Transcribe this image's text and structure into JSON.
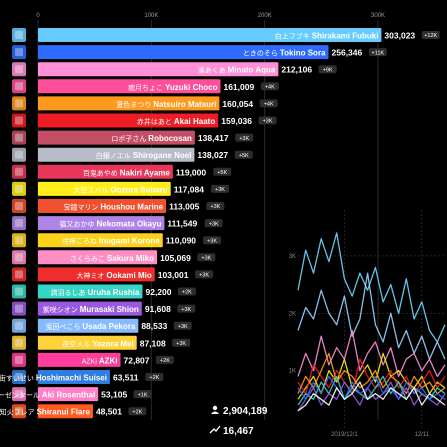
{
  "chart_data": {
    "type": "bar",
    "orientation": "horizontal",
    "x_ticks": [
      "0",
      "100K",
      "200K",
      "300K"
    ],
    "x_tick_values": [
      0,
      100000,
      200000,
      300000
    ],
    "xlim": [
      0,
      330000
    ],
    "grid": true,
    "categories": [
      {
        "jp": "白上フブキ",
        "en": "Shirakami Fubuki",
        "value": 303023,
        "value_label": "303,023",
        "badge": "+12K",
        "color": "#66ccff"
      },
      {
        "jp": "ときのそら",
        "en": "Tokino Sora",
        "value": 256346,
        "value_label": "256,346",
        "badge": "+11K",
        "color": "#2d6cff"
      },
      {
        "jp": "湊あくあ",
        "en": "Minato Aqua",
        "value": 212106,
        "value_label": "212,106",
        "badge": "+9K",
        "color": "#ff8fd6"
      },
      {
        "jp": "癒月ちょこ",
        "en": "Yuzuki Choco",
        "value": 161009,
        "value_label": "161,009",
        "badge": "+4K",
        "color": "#ff4f9a"
      },
      {
        "jp": "夏色まつり",
        "en": "Natsuiro Matsuri",
        "value": 160054,
        "value_label": "160,054",
        "badge": "+4K",
        "color": "#ff9a1f"
      },
      {
        "jp": "赤井はあと",
        "en": "Akai Haato",
        "value": 159036,
        "value_label": "159,036",
        "badge": "+3K",
        "color": "#ee1c25"
      },
      {
        "jp": "ロボ子さん",
        "en": "Robocosan",
        "value": 138417,
        "value_label": "138,417",
        "badge": "+3K",
        "color": "#c44e65"
      },
      {
        "jp": "白銀ノエル",
        "en": "Shirogane Noel",
        "value": 138027,
        "value_label": "138,027",
        "badge": "+5K",
        "color": "#b9bcc8"
      },
      {
        "jp": "百鬼あやめ",
        "en": "Nakiri Ayame",
        "value": 119000,
        "value_label": "119,000",
        "badge": "+5K",
        "color": "#e8365a"
      },
      {
        "jp": "大空スバル",
        "en": "Oozora Subaru",
        "value": 117084,
        "value_label": "117,084",
        "badge": "+3K",
        "color": "#ffee1a"
      },
      {
        "jp": "宝鐘マリン",
        "en": "Houshou Marine",
        "value": 113005,
        "value_label": "113,005",
        "badge": "+3K",
        "color": "#f0502e"
      },
      {
        "jp": "猫又おかゆ",
        "en": "Nekomata Okayu",
        "value": 111549,
        "value_label": "111,549",
        "badge": "+3K",
        "color": "#b084e6"
      },
      {
        "jp": "戌神ころね",
        "en": "Inugami Korone",
        "value": 110090,
        "value_label": "110,090",
        "badge": "+3K",
        "color": "#ffd21a"
      },
      {
        "jp": "さくらみこ",
        "en": "Sakura Miko",
        "value": 105069,
        "value_label": "105,069",
        "badge": "+3K",
        "color": "#ff8ec3"
      },
      {
        "jp": "大神ミオ",
        "en": "Ookami Mio",
        "value": 103001,
        "value_label": "103,001",
        "badge": "+3K",
        "color": "#ee2d2d"
      },
      {
        "jp": "潤羽るしあ",
        "en": "Uruha Rushia",
        "value": 92200,
        "value_label": "92,200",
        "badge": "+2K",
        "color": "#36d4c4"
      },
      {
        "jp": "紫咲シオン",
        "en": "Murasaki Shion",
        "value": 91608,
        "value_label": "91,608",
        "badge": "+3K",
        "color": "#9a5ae0"
      },
      {
        "jp": "兎田ぺこら",
        "en": "Usada Pekora",
        "value": 88533,
        "value_label": "88,533",
        "badge": "+3K",
        "color": "#86bcff"
      },
      {
        "jp": "夜空メル",
        "en": "Yozora Mel",
        "value": 87108,
        "value_label": "87,108",
        "badge": "+3K",
        "color": "#ffd23a"
      },
      {
        "jp": "AZKi",
        "en": "AZKi",
        "value": 72807,
        "value_label": "72,807",
        "badge": "+2K",
        "color": "#ff3d9a"
      },
      {
        "jp": "星街すいせい",
        "en": "Hoshimachi Suisei",
        "value": 63511,
        "value_label": "63,511",
        "badge": "+2K",
        "color": "#2f7de0"
      },
      {
        "jp": "アキ・ローゼンタール",
        "en": "Aki Rosenthal",
        "value": 53105,
        "value_label": "53,105",
        "badge": "+1K",
        "color": "#ff80c8"
      },
      {
        "jp": "不知火フレア",
        "en": "Shiranui Flare",
        "value": 48501,
        "value_label": "48,501",
        "badge": "+2K",
        "color": "#ff5a1f"
      }
    ],
    "totals": {
      "total": "2,904,189",
      "delta": "16,467"
    },
    "inset": {
      "type": "line",
      "y_ticks": [
        "3K",
        "2K",
        "1K"
      ],
      "y_tick_values": [
        3000,
        2000,
        1000
      ],
      "ylim": [
        0,
        3800
      ],
      "x_ticks": [
        "2019/12/1",
        "12/11"
      ],
      "x_tick_values": [
        6,
        16
      ],
      "xlim": [
        0,
        19
      ],
      "series": [
        {
          "color": "#6fd8ff",
          "values": [
            2400,
            3100,
            2700,
            3300,
            2900,
            3400,
            2600,
            2300,
            2700,
            2400,
            2800,
            2200,
            2500,
            2000,
            2600,
            1900,
            2200,
            1700,
            1500,
            1800
          ]
        },
        {
          "color": "#9bd2ff",
          "values": [
            1700,
            2100,
            1900,
            2400,
            2000,
            1800,
            2300,
            1600,
            1900,
            2700,
            1800,
            1500,
            2000,
            1400,
            1700,
            1300,
            1600,
            1200,
            1500,
            1200
          ]
        },
        {
          "color": "#ff8fd6",
          "values": [
            900,
            1300,
            1000,
            1600,
            1100,
            1400,
            1200,
            1700,
            1000,
            1300,
            1500,
            1100,
            1400,
            900,
            1200,
            1300,
            1000,
            1200,
            900,
            1100
          ]
        },
        {
          "color": "#ffee1a",
          "values": [
            500,
            700,
            900,
            600,
            1000,
            800,
            1200,
            700,
            900,
            1100,
            800,
            1300,
            900,
            1000,
            800,
            700,
            900,
            600,
            800,
            700
          ]
        },
        {
          "color": "#ee1c25",
          "values": [
            800,
            600,
            1100,
            900,
            700,
            1000,
            800,
            600,
            1200,
            900,
            700,
            800,
            1000,
            700,
            900,
            600,
            800,
            1000,
            700,
            900
          ]
        },
        {
          "color": "#ff9a1f",
          "values": [
            600,
            900,
            700,
            1000,
            1300,
            800,
            1000,
            900,
            700,
            800,
            1000,
            700,
            900,
            800,
            600,
            900,
            700,
            800,
            600,
            700
          ]
        },
        {
          "color": "#36d4c4",
          "values": [
            400,
            600,
            500,
            800,
            600,
            900,
            500,
            700,
            600,
            500,
            700,
            900,
            600,
            800,
            500,
            700,
            600,
            500,
            700,
            600
          ]
        },
        {
          "color": "#9a5ae0",
          "values": [
            300,
            500,
            700,
            400,
            600,
            500,
            800,
            600,
            400,
            700,
            500,
            600,
            800,
            500,
            700,
            400,
            600,
            500,
            400,
            600
          ]
        },
        {
          "color": "#2d6cff",
          "values": [
            700,
            500,
            800,
            600,
            900,
            700,
            500,
            800,
            600,
            700,
            900,
            600,
            700,
            500,
            800,
            600,
            700,
            500,
            600,
            500
          ]
        },
        {
          "color": "#ffffff",
          "values": [
            300,
            400,
            600,
            500,
            400,
            700,
            500,
            600,
            800,
            500,
            600,
            500,
            700,
            600,
            500,
            700,
            400,
            600,
            500,
            400
          ]
        }
      ]
    }
  }
}
